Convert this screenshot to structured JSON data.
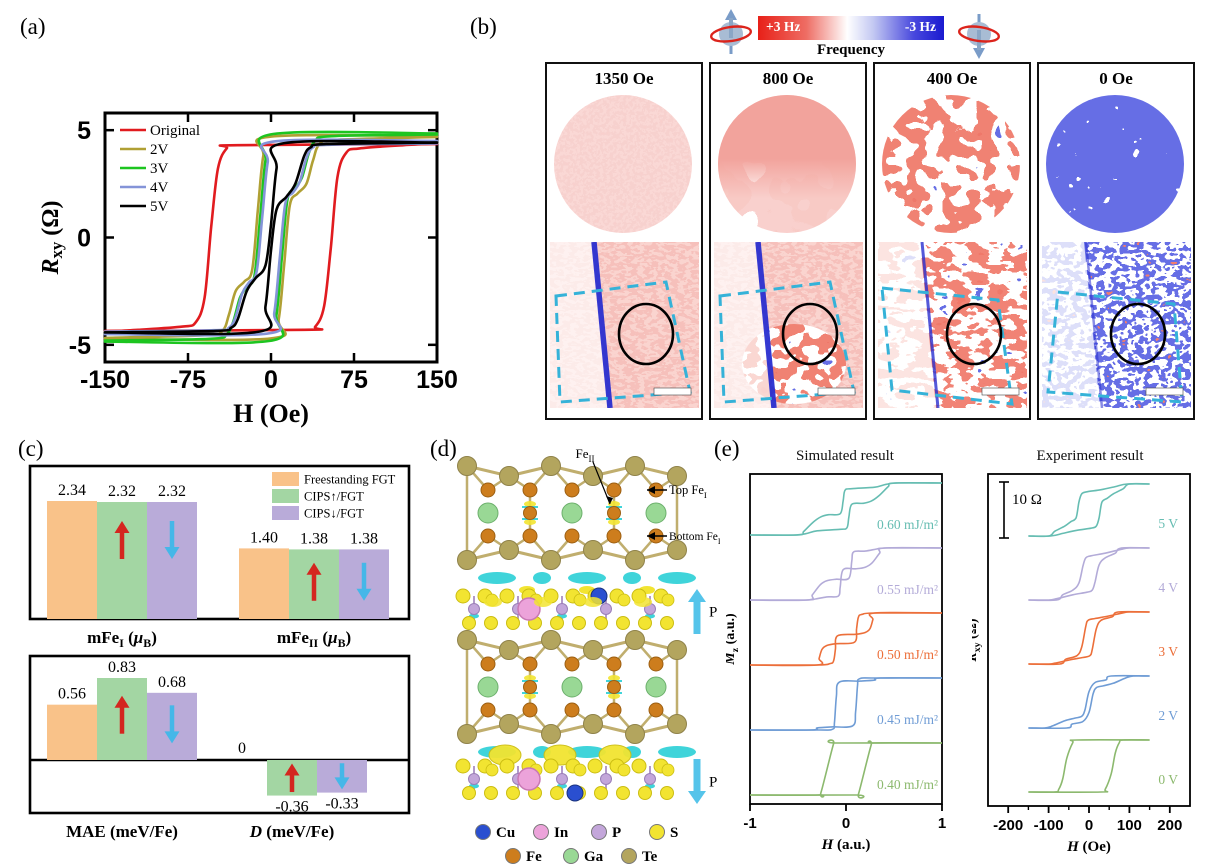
{
  "labels": {
    "a": "(a)",
    "b": "(b)",
    "c": "(c)",
    "d": "(d)",
    "e": "(e)"
  },
  "colorbar": {
    "left_label": "+3 Hz",
    "right_label": "-3 Hz",
    "title": "Frequency"
  },
  "panel_b": {
    "fields": [
      "1350 Oe",
      "800 Oe",
      "400 Oe",
      "0 Oe"
    ]
  },
  "panel_d": {
    "annotations": {
      "fe2": "Fe_II",
      "top_fe": "Top Fe_I",
      "bottom_fe": "Bottom Fe_I",
      "p_up": "P",
      "p_down": "P"
    },
    "legend_row1": [
      {
        "name": "Cu",
        "color": "#2a4fd0"
      },
      {
        "name": "In",
        "color": "#eca3da"
      },
      {
        "name": "P",
        "color": "#c3a6da"
      },
      {
        "name": "S",
        "color": "#f2e431"
      }
    ],
    "legend_row2": [
      {
        "name": "Fe",
        "color": "#cd7d1d"
      },
      {
        "name": "Ga",
        "color": "#99d895"
      },
      {
        "name": "Te",
        "color": "#b3a55e"
      }
    ]
  },
  "panel_e": {
    "sim_title": "Simulated result",
    "exp_title": "Experiment result",
    "scalebar_label": "10 Ω"
  },
  "chart_data": [
    {
      "id": "panel-a",
      "type": "line",
      "xlabel": "H (Oe)",
      "ylabel": "*R*_xy (Ω)",
      "xlim": [
        -150,
        150
      ],
      "ylim": [
        -5.8,
        5.8
      ],
      "xticks": [
        -150,
        -75,
        0,
        75,
        150
      ],
      "yticks": [
        -5,
        0,
        5
      ],
      "legend_position": "top-left",
      "grid": false,
      "note": "hysteresis loops; down-sweep branch is point-mirror of up_branch",
      "series": [
        {
          "name": "Original",
          "color": "#e11b1f",
          "up_branch": [
            [
              -150,
              -4.35
            ],
            [
              30,
              -4.3
            ],
            [
              40,
              -4.15
            ],
            [
              48,
              -3.2
            ],
            [
              54,
              -0.5
            ],
            [
              60,
              2.8
            ],
            [
              68,
              3.95
            ],
            [
              80,
              4.15
            ],
            [
              120,
              4.3
            ],
            [
              150,
              4.38
            ]
          ]
        },
        {
          "name": "2V",
          "color": "#b0a034",
          "up_branch": [
            [
              -150,
              -4.72
            ],
            [
              0,
              -4.7
            ],
            [
              7,
              -3.8
            ],
            [
              12,
              -1.2
            ],
            [
              17,
              1.5
            ],
            [
              24,
              2.05
            ],
            [
              32,
              2.5
            ],
            [
              38,
              3.6
            ],
            [
              44,
              4.35
            ],
            [
              60,
              4.55
            ],
            [
              150,
              4.68
            ]
          ]
        },
        {
          "name": "3V",
          "color": "#1dc520",
          "up_branch": [
            [
              -150,
              -4.85
            ],
            [
              -2,
              -4.82
            ],
            [
              5,
              -3.6
            ],
            [
              10,
              -0.8
            ],
            [
              15,
              1.8
            ],
            [
              22,
              2.3
            ],
            [
              28,
              2.8
            ],
            [
              34,
              3.9
            ],
            [
              40,
              4.5
            ],
            [
              55,
              4.72
            ],
            [
              150,
              4.8
            ]
          ]
        },
        {
          "name": "4V",
          "color": "#8494d8",
          "up_branch": [
            [
              -150,
              -4.5
            ],
            [
              -4,
              -4.48
            ],
            [
              3,
              -3.5
            ],
            [
              8,
              -0.9
            ],
            [
              13,
              1.6
            ],
            [
              20,
              2.1
            ],
            [
              26,
              2.6
            ],
            [
              32,
              3.7
            ],
            [
              38,
              4.2
            ],
            [
              52,
              4.32
            ],
            [
              150,
              4.38
            ]
          ]
        },
        {
          "name": "5V",
          "color": "#000000",
          "up_branch": [
            [
              -150,
              -4.42
            ],
            [
              -12,
              -4.4
            ],
            [
              -5,
              -3.2
            ],
            [
              0,
              -0.6
            ],
            [
              5,
              1.3
            ],
            [
              14,
              1.9
            ],
            [
              22,
              2.5
            ],
            [
              30,
              3.8
            ],
            [
              36,
              4.2
            ],
            [
              50,
              4.35
            ],
            [
              150,
              4.42
            ]
          ]
        }
      ]
    },
    {
      "id": "panel-c-top",
      "type": "bar",
      "series_names": [
        "Freestanding FGT",
        "CIPS↑/FGT",
        "CIPS↓/FGT"
      ],
      "colors": [
        "#f9c289",
        "#a3d6a3",
        "#b9abd9"
      ],
      "arrows": [
        null,
        "up",
        "down"
      ],
      "arrow_colors": {
        "up": "#d4261f",
        "down": "#45b7e8"
      },
      "show_legend": true,
      "groups": [
        {
          "label": "mFe_I (*μ*_B)",
          "values": [
            2.34,
            2.32,
            2.32
          ],
          "value_labels": [
            "2.34",
            "2.32",
            "2.32"
          ]
        },
        {
          "label": "mFe_II (*μ*_B)",
          "values": [
            1.4,
            1.38,
            1.38
          ],
          "value_labels": [
            "1.40",
            "1.38",
            "1.38"
          ]
        }
      ]
    },
    {
      "id": "panel-c-bottom",
      "type": "bar",
      "series_names": [
        "Freestanding FGT",
        "CIPS↑/FGT",
        "CIPS↓/FGT"
      ],
      "colors": [
        "#f9c289",
        "#a3d6a3",
        "#b9abd9"
      ],
      "arrows": [
        null,
        "up",
        "down"
      ],
      "arrow_colors": {
        "up": "#d4261f",
        "down": "#45b7e8"
      },
      "show_legend": false,
      "zero_line": true,
      "groups": [
        {
          "label": "MAE (meV/Fe)",
          "values": [
            0.56,
            0.83,
            0.68
          ],
          "value_labels": [
            "0.56",
            "0.83",
            "0.68"
          ]
        },
        {
          "label": "*D* (meV/Fe)",
          "values": [
            0,
            -0.36,
            -0.33
          ],
          "value_labels": [
            "0",
            "-0.36",
            "-0.33"
          ]
        }
      ]
    },
    {
      "id": "panel-e-sim",
      "type": "line",
      "title": "Simulated result",
      "xlabel": "*H* (a.u.)",
      "ylabel": "*M*_z (a.u.)",
      "xlim": [
        -1,
        1
      ],
      "xticks": [
        -1,
        0,
        1
      ],
      "xminor": [],
      "stacked": true,
      "series": [
        {
          "name": "0.60 mJ/m²",
          "color": "#66bdb2",
          "up_branch": [
            [
              -1,
              -1
            ],
            [
              -0.5,
              -1
            ],
            [
              -0.44,
              -0.86
            ],
            [
              -0.34,
              -0.5
            ],
            [
              -0.26,
              -0.3
            ],
            [
              -0.18,
              -0.22
            ],
            [
              -0.06,
              -0.18
            ],
            [
              -0.03,
              0.3
            ],
            [
              -0.01,
              0.72
            ],
            [
              0.06,
              0.78
            ],
            [
              0.3,
              0.84
            ],
            [
              0.42,
              0.95
            ],
            [
              0.55,
              1
            ],
            [
              1,
              1
            ]
          ]
        },
        {
          "name": "0.55 mJ/m²",
          "color": "#b3abd8",
          "up_branch": [
            [
              -1,
              -1
            ],
            [
              -0.4,
              -1
            ],
            [
              -0.35,
              -0.8
            ],
            [
              -0.27,
              -0.42
            ],
            [
              -0.2,
              -0.26
            ],
            [
              -0.1,
              -0.2
            ],
            [
              0.03,
              -0.16
            ],
            [
              0.06,
              0.5
            ],
            [
              0.08,
              0.85
            ],
            [
              0.2,
              0.88
            ],
            [
              0.32,
              0.96
            ],
            [
              0.42,
              1
            ],
            [
              1,
              1
            ]
          ]
        },
        {
          "name": "0.50 mJ/m²",
          "color": "#ec6f3a",
          "up_branch": [
            [
              -1,
              -1
            ],
            [
              -0.3,
              -1
            ],
            [
              -0.28,
              -0.75
            ],
            [
              -0.25,
              -0.4
            ],
            [
              -0.2,
              -0.25
            ],
            [
              -0.1,
              -0.18
            ],
            [
              0.09,
              -0.12
            ],
            [
              0.11,
              0.4
            ],
            [
              0.13,
              0.85
            ],
            [
              0.17,
              0.95
            ],
            [
              0.3,
              1
            ],
            [
              1,
              1
            ]
          ]
        },
        {
          "name": "0.45 mJ/m²",
          "color": "#6f9cd5",
          "up_branch": [
            [
              -1,
              -1
            ],
            [
              -0.36,
              -1
            ],
            [
              -0.3,
              -0.92
            ],
            [
              -0.15,
              -0.88
            ],
            [
              0.07,
              -0.84
            ],
            [
              0.1,
              -0.3
            ],
            [
              0.12,
              0.7
            ],
            [
              0.14,
              0.97
            ],
            [
              0.3,
              1
            ],
            [
              1,
              1
            ]
          ]
        },
        {
          "name": "0.40 mJ/m²",
          "color": "#8cb96e",
          "up_branch": [
            [
              -1,
              -1
            ],
            [
              0.1,
              -1
            ],
            [
              0.13,
              -0.96
            ],
            [
              0.26,
              0.9
            ],
            [
              0.29,
              1
            ],
            [
              1,
              1
            ]
          ]
        }
      ]
    },
    {
      "id": "panel-e-exp",
      "type": "line",
      "title": "Experiment result",
      "xlabel": "*H* (Oe)",
      "ylabel": "*R*_xy (Ω)",
      "xlim": [
        -250,
        250
      ],
      "xticks": [
        -200,
        -100,
        0,
        100,
        200
      ],
      "xminor": [
        -150,
        -50,
        50,
        150
      ],
      "stacked": true,
      "scalebar": "10 Ω",
      "series": [
        {
          "name": "5 V",
          "color": "#66bdb2",
          "up_branch": [
            [
              -150,
              -1
            ],
            [
              -100,
              -1
            ],
            [
              -85,
              -0.82
            ],
            [
              -60,
              -0.62
            ],
            [
              -45,
              -0.45
            ],
            [
              -32,
              -0.3
            ],
            [
              -25,
              0.3
            ],
            [
              -18,
              0.62
            ],
            [
              -5,
              0.7
            ],
            [
              30,
              0.78
            ],
            [
              65,
              0.9
            ],
            [
              95,
              1
            ],
            [
              150,
              1
            ]
          ]
        },
        {
          "name": "4 V",
          "color": "#b3abd8",
          "up_branch": [
            [
              -150,
              -1
            ],
            [
              -80,
              -1
            ],
            [
              -65,
              -0.8
            ],
            [
              -40,
              -0.62
            ],
            [
              -25,
              -0.35
            ],
            [
              -15,
              0.3
            ],
            [
              -8,
              0.62
            ],
            [
              5,
              0.7
            ],
            [
              40,
              0.8
            ],
            [
              80,
              0.95
            ],
            [
              100,
              1
            ],
            [
              150,
              1
            ]
          ]
        },
        {
          "name": "3 V",
          "color": "#ec6f3a",
          "up_branch": [
            [
              -150,
              -1
            ],
            [
              -72,
              -1
            ],
            [
              -58,
              -0.82
            ],
            [
              -30,
              -0.68
            ],
            [
              -18,
              -0.35
            ],
            [
              -8,
              0.45
            ],
            [
              -2,
              0.68
            ],
            [
              15,
              0.75
            ],
            [
              50,
              0.85
            ],
            [
              85,
              0.97
            ],
            [
              100,
              1
            ],
            [
              150,
              1
            ]
          ]
        },
        {
          "name": "2 V",
          "color": "#6f9cd5",
          "up_branch": [
            [
              -150,
              -1
            ],
            [
              -55,
              -1
            ],
            [
              -42,
              -0.85
            ],
            [
              -15,
              -0.75
            ],
            [
              0,
              -0.4
            ],
            [
              10,
              0.3
            ],
            [
              18,
              0.55
            ],
            [
              35,
              0.62
            ],
            [
              60,
              0.72
            ],
            [
              90,
              0.92
            ],
            [
              110,
              1
            ],
            [
              150,
              1
            ]
          ]
        },
        {
          "name": "0 V",
          "color": "#8cb96e",
          "up_branch": [
            [
              -150,
              -1
            ],
            [
              30,
              -1
            ],
            [
              40,
              -0.9
            ],
            [
              55,
              -0.3
            ],
            [
              65,
              0.5
            ],
            [
              75,
              0.9
            ],
            [
              85,
              1
            ],
            [
              150,
              1
            ]
          ]
        }
      ]
    }
  ]
}
